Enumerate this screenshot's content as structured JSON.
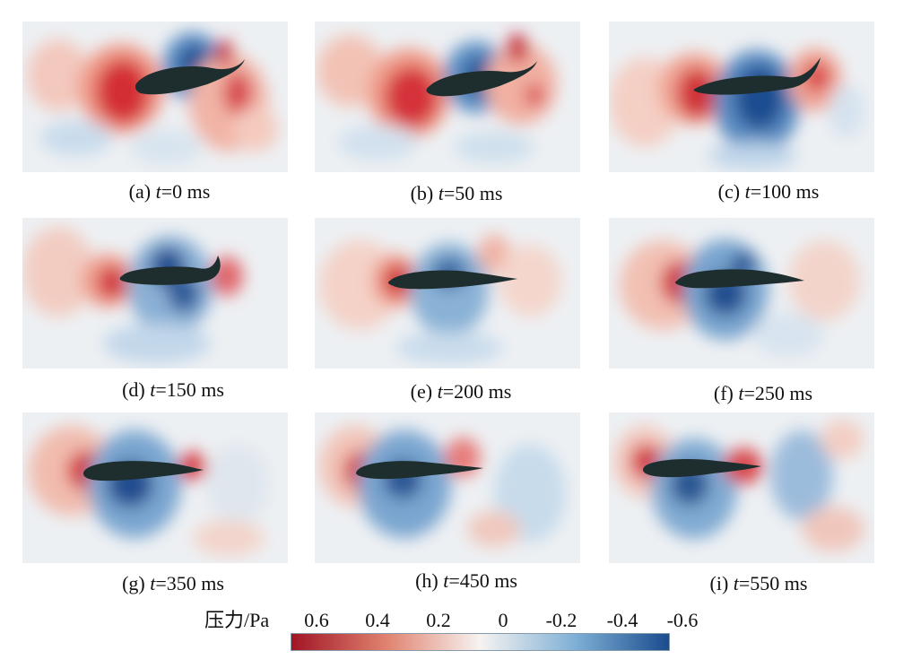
{
  "figure": {
    "panels": [
      {
        "label": "(a)",
        "var": "t",
        "value": "=0 ms"
      },
      {
        "label": "(b)",
        "var": "t",
        "value": "=50 ms"
      },
      {
        "label": "(c)",
        "var": "t",
        "value": "=100 ms"
      },
      {
        "label": "(d)",
        "var": "t",
        "value": "=150 ms"
      },
      {
        "label": "(e)",
        "var": "t",
        "value": "=200 ms"
      },
      {
        "label": "(f)",
        "var": "t",
        "value": "=250 ms"
      },
      {
        "label": "(g)",
        "var": "t",
        "value": "=350 ms"
      },
      {
        "label": "(h)",
        "var": "t",
        "value": "=450 ms"
      },
      {
        "label": "(i)",
        "var": "t",
        "value": "=550 ms"
      }
    ],
    "colorbar": {
      "title": "压力/Pa",
      "ticks": [
        "0.6",
        "0.4",
        "0.2",
        "0",
        "-0.2",
        "-0.4",
        "-0.6"
      ],
      "color_high": "#a01525",
      "color_mid": "#f6f3f1",
      "color_low": "#1a4c8e"
    },
    "fish_color": "#1e2e2e",
    "field_background": "#ecf0f3"
  }
}
